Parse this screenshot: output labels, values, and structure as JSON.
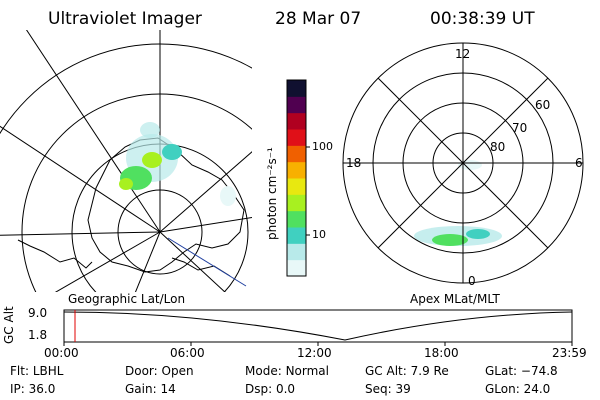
{
  "header": {
    "instrument": "Ultraviolet Imager",
    "date": "28 Mar 07",
    "time": "00:38:39 UT"
  },
  "left_panel": {
    "caption": "Geographic Lat/Lon"
  },
  "right_panel": {
    "caption": "Apex MLat/MLT",
    "mlt_labels": {
      "top": "12",
      "left": "18",
      "right": "6",
      "bottom": "0"
    },
    "mlat_labels": [
      "60",
      "70",
      "80"
    ]
  },
  "colorbar": {
    "unit_label": "photon cm⁻²s⁻¹",
    "tick_labels": [
      "100",
      "10"
    ],
    "colors": [
      "#e8f8f8",
      "#b8eaea",
      "#40d0c0",
      "#50e060",
      "#a8f020",
      "#e8e810",
      "#f8b000",
      "#f06000",
      "#e01018",
      "#b00020",
      "#500050",
      "#101030"
    ]
  },
  "timeline": {
    "y_label": "GC Alt",
    "y_ticks": [
      "9.0",
      "1.8"
    ],
    "x_ticks": [
      "00:00",
      "06:00",
      "12:00",
      "18:00",
      "23:59"
    ],
    "marker_color": "#e00000"
  },
  "status": {
    "row1": [
      {
        "key": "Flt:",
        "value": "LBHL"
      },
      {
        "key": "Door:",
        "value": "Open"
      },
      {
        "key": "Mode:",
        "value": "Normal"
      },
      {
        "key": "GC Alt:",
        "value": "7.9 Re"
      },
      {
        "key": "GLat:",
        "value": "−74.8"
      }
    ],
    "row2": [
      {
        "key": "IP:",
        "value": "36.0"
      },
      {
        "key": "Gain:",
        "value": "14"
      },
      {
        "key": "Dsp:",
        "value": "0.0"
      },
      {
        "key": "Seq:",
        "value": "39"
      },
      {
        "key": "GLon:",
        "value": "24.0"
      }
    ]
  }
}
